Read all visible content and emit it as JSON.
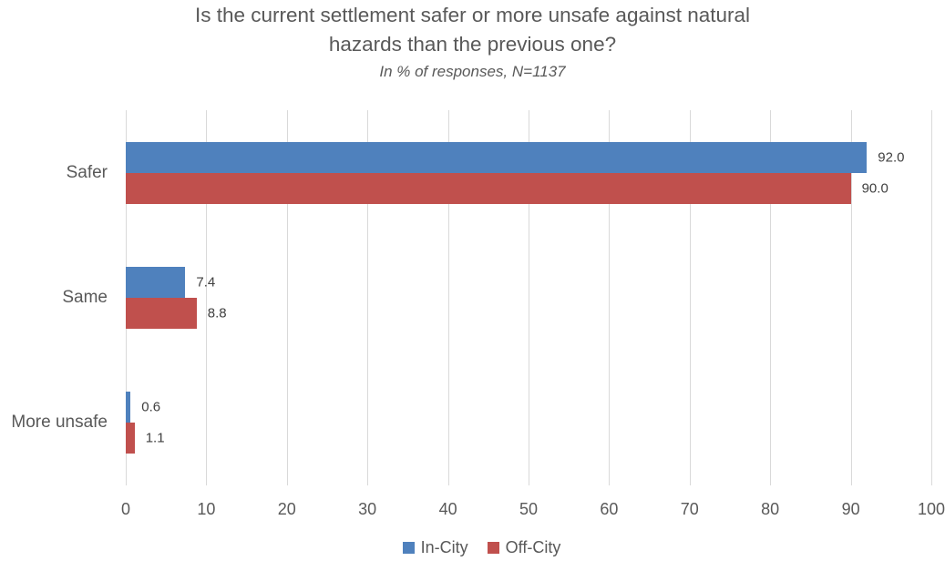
{
  "title": {
    "lines": [
      "Is the current settlement safer or more unsafe against natural",
      "hazards than the previous one?"
    ],
    "subtitle": "In % of responses, N=1137"
  },
  "chart_data": {
    "type": "bar",
    "orientation": "horizontal",
    "title": "Is the current settlement safer or more unsafe against natural hazards than the previous one?",
    "subtitle": "In % of responses, N=1137",
    "categories": [
      "Safer",
      "Same",
      "More unsafe"
    ],
    "series": [
      {
        "name": "In-City",
        "color": "#4F81BD",
        "values": [
          92.0,
          7.4,
          0.6
        ],
        "labels": [
          "92.0",
          "7.4",
          "0.6"
        ]
      },
      {
        "name": "Off-City",
        "color": "#C0504D",
        "values": [
          90.0,
          8.8,
          1.1
        ],
        "labels": [
          "90.0",
          "8.8",
          "1.1"
        ]
      }
    ],
    "xlim": [
      0,
      100
    ],
    "x_ticks": [
      0,
      10,
      20,
      30,
      40,
      50,
      60,
      70,
      80,
      90,
      100
    ],
    "grid": true,
    "grid_color": "#d9d9d9",
    "text_color": "#595959",
    "value_label_color": "#404040",
    "legend_position": "bottom"
  }
}
